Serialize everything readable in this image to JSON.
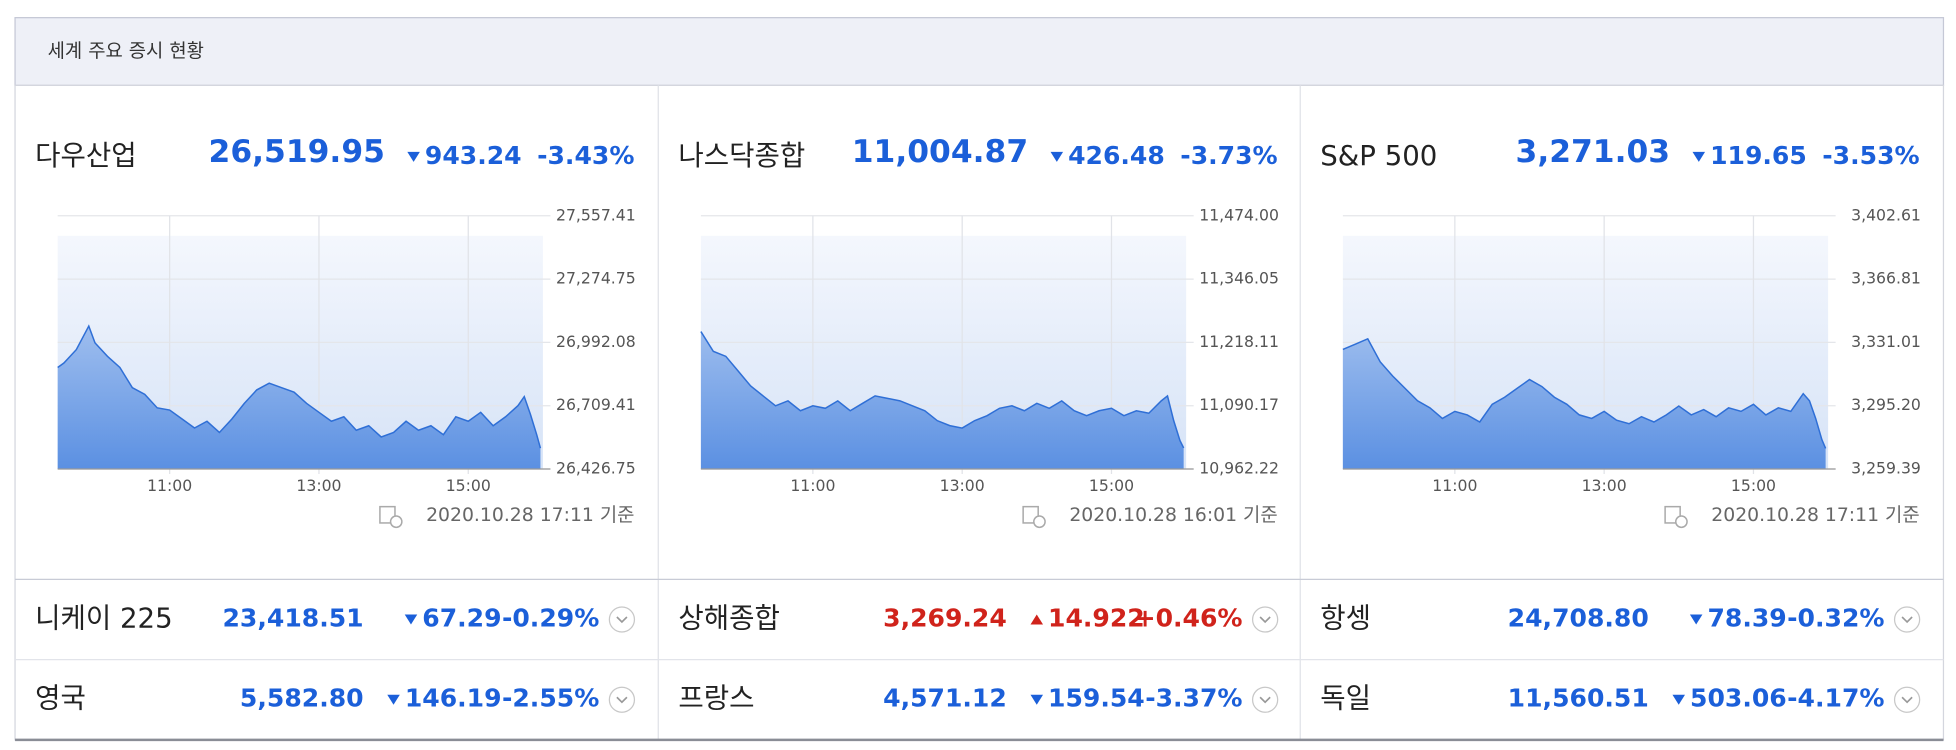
{
  "header": {
    "title": "세계 주요 증시 현황"
  },
  "colors": {
    "down": "#1b5fd9",
    "up": "#d0231b"
  },
  "indices": [
    {
      "name": "다우산업",
      "value": "26,519.95",
      "direction": "down",
      "change": "943.24",
      "change_pct": "-3.43%",
      "updated": "2020.10.28 17:11 기준",
      "chart": {
        "type": "area",
        "color": "#2f6fd6",
        "x": [
          570,
          575,
          585,
          595,
          600,
          610,
          620,
          630,
          640,
          650,
          660,
          670,
          680,
          690,
          700,
          710,
          720,
          730,
          740,
          750,
          760,
          770,
          780,
          790,
          800,
          810,
          820,
          830,
          840,
          850,
          860,
          870,
          880,
          890,
          900,
          910,
          920,
          930,
          940,
          945,
          950,
          955,
          958
        ],
        "values": [
          26880,
          26900,
          26960,
          27065,
          26990,
          26930,
          26880,
          26790,
          26760,
          26700,
          26690,
          26650,
          26610,
          26640,
          26590,
          26650,
          26720,
          26780,
          26810,
          26790,
          26770,
          26720,
          26680,
          26640,
          26660,
          26600,
          26620,
          26570,
          26590,
          26640,
          26600,
          26620,
          26580,
          26660,
          26640,
          26680,
          26620,
          26660,
          26710,
          26750,
          26670,
          26580,
          26519.95
        ],
        "xlim": [
          570,
          960
        ],
        "xticks": [
          {
            "value": 660,
            "label": "11:00"
          },
          {
            "value": 780,
            "label": "13:00"
          },
          {
            "value": 900,
            "label": "15:00"
          }
        ],
        "ylim": [
          26426.75,
          27557.41
        ],
        "yticks": [
          {
            "value": 26426.75,
            "label": "26,426.75"
          },
          {
            "value": 26709.41,
            "label": "26,709.41"
          },
          {
            "value": 26992.08,
            "label": "26,992.08"
          },
          {
            "value": 27274.75,
            "label": "27,274.75"
          },
          {
            "value": 27557.41,
            "label": "27,557.41"
          }
        ]
      }
    },
    {
      "name": "나스닥종합",
      "value": "11,004.87",
      "direction": "down",
      "change": "426.48",
      "change_pct": "-3.73%",
      "updated": "2020.10.28 16:01 기준",
      "chart": {
        "type": "area",
        "color": "#2f6fd6",
        "x": [
          570,
          580,
          590,
          600,
          610,
          620,
          630,
          640,
          650,
          660,
          670,
          680,
          690,
          700,
          710,
          720,
          730,
          740,
          750,
          760,
          770,
          780,
          790,
          800,
          810,
          820,
          830,
          840,
          850,
          860,
          870,
          880,
          890,
          900,
          910,
          920,
          930,
          940,
          945,
          950,
          955,
          958
        ],
        "values": [
          11240,
          11200,
          11190,
          11160,
          11130,
          11110,
          11090,
          11100,
          11080,
          11090,
          11085,
          11100,
          11080,
          11095,
          11110,
          11105,
          11100,
          11090,
          11080,
          11060,
          11050,
          11045,
          11060,
          11070,
          11085,
          11090,
          11080,
          11095,
          11085,
          11100,
          11080,
          11070,
          11080,
          11085,
          11070,
          11080,
          11075,
          11100,
          11110,
          11060,
          11020,
          11004.87
        ],
        "xlim": [
          570,
          960
        ],
        "xticks": [
          {
            "value": 660,
            "label": "11:00"
          },
          {
            "value": 780,
            "label": "13:00"
          },
          {
            "value": 900,
            "label": "15:00"
          }
        ],
        "ylim": [
          10962.22,
          11474.0
        ],
        "yticks": [
          {
            "value": 10962.22,
            "label": "10,962.22"
          },
          {
            "value": 11090.17,
            "label": "11,090.17"
          },
          {
            "value": 11218.11,
            "label": "11,218.11"
          },
          {
            "value": 11346.05,
            "label": "11,346.05"
          },
          {
            "value": 11474.0,
            "label": "11,474.00"
          }
        ]
      }
    },
    {
      "name": "S&P 500",
      "value": "3,271.03",
      "direction": "down",
      "change": "119.65",
      "change_pct": "-3.53%",
      "updated": "2020.10.28 17:11 기준",
      "chart": {
        "type": "area",
        "color": "#2f6fd6",
        "x": [
          570,
          580,
          590,
          600,
          610,
          620,
          630,
          640,
          650,
          660,
          670,
          680,
          690,
          700,
          710,
          720,
          730,
          740,
          750,
          760,
          770,
          780,
          790,
          800,
          810,
          820,
          830,
          840,
          850,
          860,
          870,
          880,
          890,
          900,
          910,
          920,
          930,
          940,
          945,
          950,
          955,
          958
        ],
        "values": [
          3327,
          3330,
          3333,
          3320,
          3312,
          3305,
          3298,
          3294,
          3288,
          3292,
          3290,
          3286,
          3296,
          3300,
          3305,
          3310,
          3306,
          3300,
          3296,
          3290,
          3288,
          3292,
          3287,
          3285,
          3289,
          3286,
          3290,
          3295,
          3290,
          3293,
          3289,
          3294,
          3292,
          3296,
          3290,
          3294,
          3292,
          3302,
          3298,
          3288,
          3276,
          3271.03
        ],
        "xlim": [
          570,
          960
        ],
        "xticks": [
          {
            "value": 660,
            "label": "11:00"
          },
          {
            "value": 780,
            "label": "13:00"
          },
          {
            "value": 900,
            "label": "15:00"
          }
        ],
        "ylim": [
          3259.39,
          3402.61
        ],
        "yticks": [
          {
            "value": 3259.39,
            "label": "3,259.39"
          },
          {
            "value": 3295.2,
            "label": "3,295.20"
          },
          {
            "value": 3331.01,
            "label": "3,331.01"
          },
          {
            "value": 3366.81,
            "label": "3,366.81"
          },
          {
            "value": 3402.61,
            "label": "3,402.61"
          }
        ]
      }
    }
  ],
  "markets": [
    {
      "name": "니케이 225",
      "value": "23,418.51",
      "direction": "down",
      "change": "67.29",
      "change_pct": "-0.29%"
    },
    {
      "name": "상해종합",
      "value": "3,269.24",
      "direction": "up",
      "change": "14.922",
      "change_pct": "+0.46%"
    },
    {
      "name": "항셍",
      "value": "24,708.80",
      "direction": "down",
      "change": "78.39",
      "change_pct": "-0.32%"
    },
    {
      "name": "영국",
      "value": "5,582.80",
      "direction": "down",
      "change": "146.19",
      "change_pct": "-2.55%"
    },
    {
      "name": "프랑스",
      "value": "4,571.12",
      "direction": "down",
      "change": "159.54",
      "change_pct": "-3.37%"
    },
    {
      "name": "독일",
      "value": "11,560.51",
      "direction": "down",
      "change": "503.06",
      "change_pct": "-4.17%"
    }
  ]
}
